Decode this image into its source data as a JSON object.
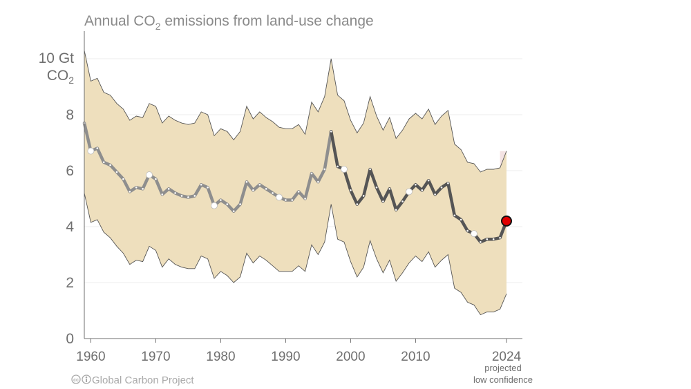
{
  "chart_data": {
    "type": "area",
    "title_main": "Annual CO",
    "title_sub": "2",
    "title_rest": " emissions from land-use change",
    "ytick_labels": [
      "0",
      "2",
      "4",
      "6",
      "8"
    ],
    "ytop_label_line1": "10 Gt",
    "ytop_label_co": "CO",
    "ytop_label_sub": "2",
    "xtick_labels": [
      "1960",
      "1970",
      "1980",
      "1990",
      "2000",
      "2010",
      "2024"
    ],
    "xtick_values": [
      1960,
      1970,
      1980,
      1990,
      2000,
      2010,
      2024
    ],
    "ytick_values": [
      0,
      2,
      4,
      6,
      8,
      10
    ],
    "xlim": [
      1959,
      2027
    ],
    "ylim": [
      0,
      11
    ],
    "projection_note": [
      "projected",
      "low confidence"
    ],
    "credit": "Global Carbon Project",
    "credit_icon": "creative-commons-icon",
    "grid": true,
    "colors": {
      "band": "#eedfbd",
      "band_outline": "#555555",
      "projection_band": "#f4e3e3",
      "line_light": "#8e8e8e",
      "line_dark": "#555555",
      "point_small": "#ffffff",
      "highlight": "#e00000"
    },
    "series": [
      {
        "name": "central",
        "x": [
          1959,
          1960,
          1961,
          1962,
          1963,
          1964,
          1965,
          1966,
          1967,
          1968,
          1969,
          1970,
          1971,
          1972,
          1973,
          1974,
          1975,
          1976,
          1977,
          1978,
          1979,
          1980,
          1981,
          1982,
          1983,
          1984,
          1985,
          1986,
          1987,
          1988,
          1989,
          1990,
          1991,
          1992,
          1993,
          1994,
          1995,
          1996,
          1997,
          1998,
          1999,
          2000,
          2001,
          2002,
          2003,
          2004,
          2005,
          2006,
          2007,
          2008,
          2009,
          2010,
          2011,
          2012,
          2013,
          2014,
          2015,
          2016,
          2017,
          2018,
          2019,
          2020,
          2021,
          2022,
          2023,
          2024
        ],
        "values": [
          7.7,
          6.7,
          6.8,
          6.3,
          6.2,
          5.95,
          5.7,
          5.25,
          5.4,
          5.35,
          5.85,
          5.7,
          5.15,
          5.35,
          5.2,
          5.1,
          5.05,
          5.1,
          5.5,
          5.4,
          4.75,
          4.95,
          4.8,
          4.55,
          4.8,
          5.6,
          5.3,
          5.5,
          5.35,
          5.2,
          5.05,
          4.95,
          4.95,
          5.25,
          5.0,
          5.9,
          5.6,
          6.05,
          7.4,
          6.15,
          6.05,
          5.3,
          4.8,
          5.1,
          6.05,
          5.4,
          4.9,
          5.35,
          4.6,
          4.9,
          5.25,
          5.5,
          5.3,
          5.65,
          5.15,
          5.4,
          5.55,
          4.4,
          4.25,
          3.85,
          3.75,
          3.45,
          3.55,
          3.55,
          3.6,
          4.2
        ]
      },
      {
        "name": "upper",
        "values": [
          10.3,
          9.2,
          9.3,
          8.8,
          8.7,
          8.4,
          8.2,
          7.8,
          7.95,
          7.9,
          8.4,
          8.3,
          7.7,
          7.95,
          7.8,
          7.7,
          7.65,
          7.7,
          8.1,
          8.0,
          7.25,
          7.5,
          7.4,
          7.1,
          7.4,
          8.3,
          7.85,
          8.1,
          7.9,
          7.75,
          7.55,
          7.5,
          7.5,
          7.65,
          7.3,
          8.45,
          8.1,
          8.65,
          10.0,
          8.7,
          8.5,
          7.8,
          7.35,
          7.7,
          8.65,
          7.95,
          7.45,
          7.9,
          7.15,
          7.45,
          7.85,
          8.05,
          7.85,
          8.2,
          7.65,
          7.95,
          8.15,
          6.95,
          6.75,
          6.3,
          6.25,
          5.95,
          6.05,
          6.05,
          6.1,
          6.7
        ]
      },
      {
        "name": "lower",
        "values": [
          5.2,
          4.15,
          4.25,
          3.8,
          3.6,
          3.3,
          3.05,
          2.65,
          2.8,
          2.75,
          3.3,
          3.15,
          2.55,
          2.85,
          2.65,
          2.55,
          2.5,
          2.5,
          2.95,
          2.85,
          2.15,
          2.4,
          2.25,
          2.0,
          2.2,
          3.05,
          2.7,
          2.95,
          2.8,
          2.6,
          2.4,
          2.4,
          2.4,
          2.6,
          2.4,
          3.35,
          3.0,
          3.45,
          4.8,
          3.55,
          3.45,
          2.75,
          2.2,
          2.55,
          3.5,
          2.85,
          2.35,
          2.8,
          2.05,
          2.35,
          2.7,
          2.95,
          2.75,
          3.1,
          2.55,
          2.8,
          3.0,
          1.8,
          1.65,
          1.3,
          1.2,
          0.85,
          0.95,
          0.95,
          1.05,
          1.6
        ]
      }
    ],
    "marked_years": [
      1960,
      1969,
      1979,
      1989,
      1999,
      2009,
      2019
    ],
    "highlight_year": 2024,
    "dark_from_year": 1997
  }
}
